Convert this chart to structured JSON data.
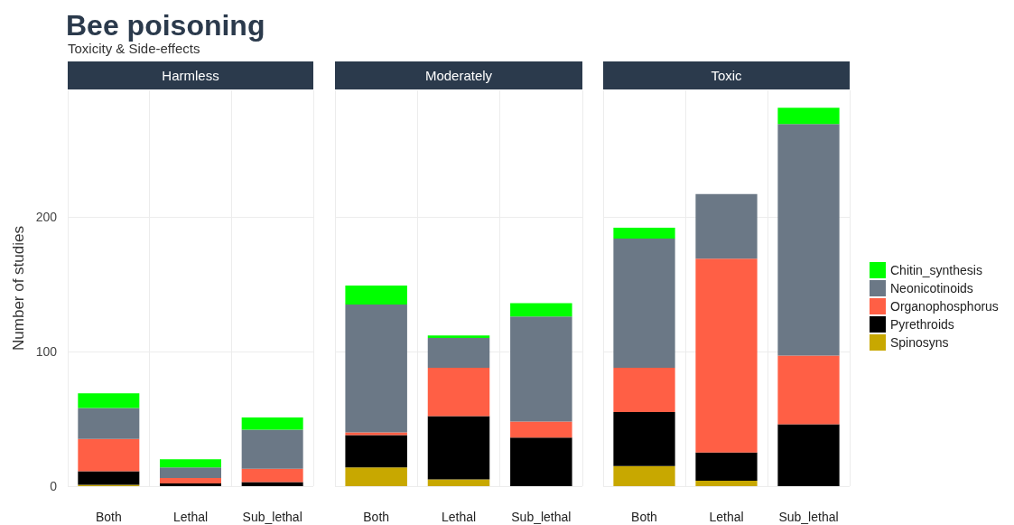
{
  "chart_data": [
    {
      "type": "bar",
      "stacked": true,
      "title": "Harmless",
      "annotations": [
        "Bee poisoning",
        "Toxicity & Side-effects"
      ],
      "ylabel": "Number of studies",
      "categories": [
        "Both",
        "Lethal",
        "Sub_lethal"
      ],
      "ylim": [
        0,
        294
      ],
      "yticks": [
        0,
        100,
        200
      ],
      "grid": true,
      "series": [
        {
          "color": "#c8a800",
          "values": [
            1,
            0,
            0
          ]
        },
        {
          "color": "#000000",
          "values": [
            10,
            2,
            3
          ]
        },
        {
          "color": "#ff5f45",
          "values": [
            24,
            4,
            10
          ]
        },
        {
          "color": "#6b7886",
          "values": [
            23,
            8,
            29
          ]
        },
        {
          "color": "#00ff00",
          "values": [
            11,
            6,
            9
          ]
        }
      ]
    },
    {
      "type": "bar",
      "stacked": true,
      "title": "Moderately",
      "categories": [
        "Both",
        "Lethal",
        "Sub_lethal"
      ],
      "ylim": [
        0,
        294
      ],
      "yticks": [
        0,
        100,
        200
      ],
      "grid": true,
      "tick_labels": "x",
      "series": [
        {
          "color": "#c8a800",
          "values": [
            14,
            5,
            0
          ]
        },
        {
          "color": "#000000",
          "values": [
            24,
            47,
            36
          ]
        },
        {
          "color": "#ff5f45",
          "values": [
            2,
            36,
            12
          ]
        },
        {
          "color": "#6b7886",
          "values": [
            95,
            22,
            78
          ]
        },
        {
          "color": "#00ff00",
          "values": [
            14,
            2,
            10
          ]
        }
      ]
    },
    {
      "type": "bar",
      "stacked": true,
      "title": "Toxic",
      "categories": [
        "Both",
        "Lethal",
        "Sub_lethal"
      ],
      "ylim": [
        0,
        294
      ],
      "yticks": [
        0,
        100,
        200
      ],
      "grid": true,
      "tick_labels": "x",
      "legend": "right",
      "series": [
        {
          "name": "Spinosyns",
          "color": "#c8a800",
          "values": [
            15,
            4,
            0
          ]
        },
        {
          "name": "Pyrethroids",
          "color": "#000000",
          "values": [
            40,
            21,
            46
          ]
        },
        {
          "name": "Organophosphorus",
          "color": "#ff5f45",
          "values": [
            33,
            144,
            51
          ]
        },
        {
          "name": "Neonicotinoids",
          "color": "#6b7886",
          "values": [
            96,
            48,
            172
          ]
        },
        {
          "name": "Chitin_synthesis",
          "color": "#00ff00",
          "values": [
            8,
            0,
            12
          ]
        }
      ]
    }
  ]
}
